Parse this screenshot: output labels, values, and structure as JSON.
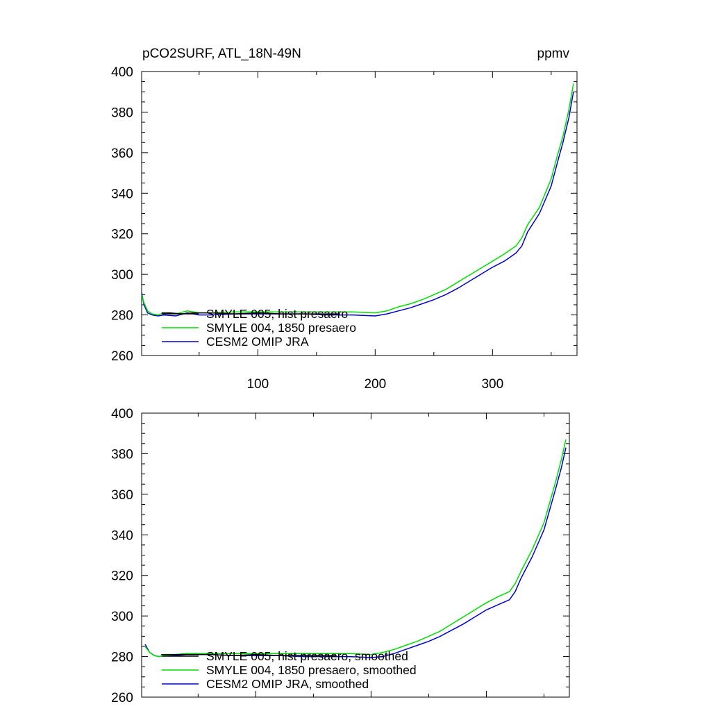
{
  "colors": {
    "smyle005": "#000000",
    "smyle004": "#00dd00",
    "omip": "#0000cc"
  },
  "chart_data": [
    {
      "type": "line",
      "title": "pCO2SURF, ATL_18N-49N",
      "units": "ppmv",
      "xlim": [
        1,
        372
      ],
      "ylim": [
        260,
        400
      ],
      "x_ticks": [
        100,
        200,
        300
      ],
      "x_tick_labels": [
        "100",
        "200",
        "300"
      ],
      "y_ticks": [
        260,
        280,
        300,
        320,
        340,
        360,
        380,
        400
      ],
      "y_tick_labels": [
        "260",
        "280",
        "300",
        "320",
        "340",
        "360",
        "380",
        "400"
      ],
      "legend_position": "bottom-left",
      "series": [
        {
          "name": "SMYLE 005, hist presaero",
          "color_key": "smyle005",
          "x": [
            18,
            25,
            35,
            45,
            60,
            80,
            100,
            120,
            140,
            160,
            170
          ],
          "y": [
            281,
            281,
            280.5,
            281,
            281,
            280.5,
            281,
            280.5,
            280.5,
            280.5,
            280.5
          ]
        },
        {
          "name": "SMYLE 004, 1850 presaero",
          "color_key": "smyle004",
          "x": [
            1,
            3,
            6,
            10,
            15,
            20,
            30,
            40,
            50,
            60,
            80,
            100,
            120,
            140,
            160,
            180,
            200,
            210,
            220,
            230,
            240,
            250,
            260,
            270,
            280,
            290,
            300,
            310,
            320,
            325,
            330,
            340,
            350,
            355,
            360,
            365,
            369
          ],
          "y": [
            290,
            286,
            282,
            280.5,
            280,
            281,
            280.5,
            282,
            281,
            281,
            281.5,
            281.5,
            281.5,
            281.5,
            281.5,
            281.5,
            281,
            282,
            284,
            285.5,
            287.5,
            290,
            292.5,
            296,
            299.5,
            303,
            306.5,
            310,
            314,
            318,
            324.5,
            333,
            347,
            358,
            368,
            381,
            394
          ]
        },
        {
          "name": "CESM2 OMIP JRA",
          "color_key": "omip",
          "x": [
            1,
            3,
            6,
            10,
            15,
            20,
            30,
            40,
            50,
            60,
            80,
            100,
            120,
            140,
            160,
            180,
            200,
            210,
            220,
            230,
            240,
            250,
            260,
            270,
            280,
            290,
            300,
            310,
            320,
            325,
            330,
            340,
            350,
            355,
            360,
            365,
            369
          ],
          "y": [
            291,
            285,
            281,
            280,
            279.5,
            280,
            279.5,
            281,
            280,
            280,
            280.5,
            280.5,
            280.5,
            280.5,
            280,
            280,
            279.5,
            280.5,
            282,
            283.5,
            285.5,
            287.5,
            290,
            293,
            296.5,
            300,
            303.5,
            306.5,
            310.5,
            314,
            321,
            330,
            343.5,
            354.5,
            365,
            377,
            390
          ]
        }
      ]
    },
    {
      "type": "line",
      "xlim": [
        1,
        372
      ],
      "ylim": [
        260,
        400
      ],
      "x_ticks": [
        100,
        200,
        300
      ],
      "y_ticks": [
        260,
        280,
        300,
        320,
        340,
        360,
        380,
        400
      ],
      "y_tick_labels": [
        "260",
        "280",
        "300",
        "320",
        "340",
        "360",
        "380",
        "400"
      ],
      "legend_position": "bottom-left",
      "series": [
        {
          "name": "SMYLE 005, hist presaero, smoothed",
          "color_key": "smyle005",
          "x": [
            18,
            30,
            45,
            60,
            80,
            100,
            120,
            140,
            160,
            170
          ],
          "y": [
            281,
            281,
            281,
            281,
            280.5,
            281,
            280.5,
            280.5,
            280.5,
            280.5
          ]
        },
        {
          "name": "SMYLE 004, 1850 presaero, smoothed",
          "color_key": "smyle004",
          "x": [
            4,
            8,
            12,
            16,
            20,
            30,
            40,
            50,
            60,
            80,
            100,
            120,
            140,
            160,
            180,
            200,
            210,
            220,
            230,
            240,
            250,
            260,
            270,
            280,
            290,
            300,
            310,
            320,
            325,
            330,
            340,
            350,
            355,
            360,
            365,
            369
          ],
          "y": [
            285,
            282,
            280.5,
            280,
            280.5,
            281,
            281.5,
            281.5,
            281.5,
            281.5,
            281.5,
            281.5,
            281.5,
            281.5,
            281.5,
            281,
            282,
            283.5,
            285.5,
            287.5,
            290,
            292.5,
            296,
            299.5,
            303,
            306.5,
            309.5,
            312,
            316,
            322,
            333,
            346,
            356,
            366,
            377,
            387
          ]
        },
        {
          "name": "CESM2 OMIP JRA, smoothed",
          "color_key": "omip",
          "x": [
            4,
            8,
            12,
            16,
            20,
            30,
            40,
            50,
            60,
            80,
            100,
            120,
            140,
            160,
            180,
            200,
            210,
            220,
            230,
            240,
            250,
            260,
            270,
            280,
            290,
            300,
            310,
            320,
            325,
            330,
            340,
            350,
            355,
            360,
            365,
            369
          ],
          "y": [
            286,
            282,
            280.5,
            280,
            280.5,
            280.5,
            281,
            281,
            281,
            280.5,
            280.5,
            280.5,
            280,
            280,
            280,
            279.5,
            280,
            281.5,
            283.5,
            285.5,
            287.5,
            290,
            293,
            296,
            299.5,
            303,
            305.5,
            308,
            312,
            318.5,
            329.5,
            342.5,
            352.5,
            362.5,
            373,
            383
          ]
        }
      ]
    }
  ]
}
